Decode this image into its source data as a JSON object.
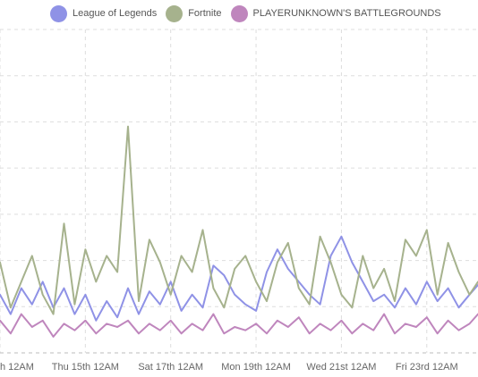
{
  "chart_data": {
    "type": "line",
    "legend_position": "top",
    "grid": true,
    "x_tick_labels": [
      "h 12AM",
      "Thu 15th 12AM",
      "Sat 17th 12AM",
      "Mon 19th 12AM",
      "Wed 21st 12AM",
      "Fri 23rd 12AM"
    ],
    "x_range_days": [
      0,
      11.2
    ],
    "ylim": [
      0,
      100
    ],
    "series": [
      {
        "name": "League of Legends",
        "color": "#8f92e6",
        "values": [
          [
            0,
            18
          ],
          [
            0.25,
            12
          ],
          [
            0.5,
            20
          ],
          [
            0.75,
            15
          ],
          [
            1,
            22
          ],
          [
            1.25,
            14
          ],
          [
            1.5,
            20
          ],
          [
            1.75,
            12
          ],
          [
            2,
            18
          ],
          [
            2.25,
            10
          ],
          [
            2.5,
            16
          ],
          [
            2.75,
            11
          ],
          [
            3,
            20
          ],
          [
            3.25,
            12
          ],
          [
            3.5,
            19
          ],
          [
            3.75,
            15
          ],
          [
            4,
            22
          ],
          [
            4.25,
            13
          ],
          [
            4.5,
            18
          ],
          [
            4.75,
            14
          ],
          [
            5,
            27
          ],
          [
            5.25,
            24
          ],
          [
            5.5,
            18
          ],
          [
            5.75,
            15
          ],
          [
            6,
            13
          ],
          [
            6.25,
            25
          ],
          [
            6.5,
            32
          ],
          [
            6.75,
            26
          ],
          [
            7,
            22
          ],
          [
            7.25,
            18
          ],
          [
            7.5,
            15
          ],
          [
            7.75,
            30
          ],
          [
            8,
            36
          ],
          [
            8.25,
            28
          ],
          [
            8.5,
            22
          ],
          [
            8.75,
            16
          ],
          [
            9,
            18
          ],
          [
            9.25,
            14
          ],
          [
            9.5,
            20
          ],
          [
            9.75,
            15
          ],
          [
            10,
            22
          ],
          [
            10.25,
            16
          ],
          [
            10.5,
            20
          ],
          [
            10.75,
            14
          ],
          [
            11,
            18
          ],
          [
            11.2,
            21
          ]
        ]
      },
      {
        "name": "Fortnite",
        "color": "#a6b28d",
        "values": [
          [
            0,
            28
          ],
          [
            0.25,
            14
          ],
          [
            0.5,
            22
          ],
          [
            0.75,
            30
          ],
          [
            1,
            18
          ],
          [
            1.25,
            12
          ],
          [
            1.5,
            40
          ],
          [
            1.75,
            15
          ],
          [
            2,
            32
          ],
          [
            2.25,
            22
          ],
          [
            2.5,
            30
          ],
          [
            2.75,
            25
          ],
          [
            3,
            70
          ],
          [
            3.25,
            16
          ],
          [
            3.5,
            35
          ],
          [
            3.75,
            28
          ],
          [
            4,
            18
          ],
          [
            4.25,
            30
          ],
          [
            4.5,
            25
          ],
          [
            4.75,
            38
          ],
          [
            5,
            20
          ],
          [
            5.25,
            14
          ],
          [
            5.5,
            26
          ],
          [
            5.75,
            30
          ],
          [
            6,
            22
          ],
          [
            6.25,
            16
          ],
          [
            6.5,
            28
          ],
          [
            6.75,
            34
          ],
          [
            7,
            20
          ],
          [
            7.25,
            15
          ],
          [
            7.5,
            36
          ],
          [
            7.75,
            28
          ],
          [
            8,
            18
          ],
          [
            8.25,
            14
          ],
          [
            8.5,
            30
          ],
          [
            8.75,
            20
          ],
          [
            9,
            26
          ],
          [
            9.25,
            16
          ],
          [
            9.5,
            35
          ],
          [
            9.75,
            30
          ],
          [
            10,
            38
          ],
          [
            10.25,
            18
          ],
          [
            10.5,
            34
          ],
          [
            10.75,
            25
          ],
          [
            11,
            18
          ],
          [
            11.2,
            22
          ]
        ]
      },
      {
        "name": "PLAYERUNKNOWN'S BATTLEGROUNDS",
        "color": "#bf86bd",
        "values": [
          [
            0,
            10
          ],
          [
            0.25,
            6
          ],
          [
            0.5,
            12
          ],
          [
            0.75,
            8
          ],
          [
            1,
            10
          ],
          [
            1.25,
            5
          ],
          [
            1.5,
            9
          ],
          [
            1.75,
            7
          ],
          [
            2,
            10
          ],
          [
            2.25,
            6
          ],
          [
            2.5,
            9
          ],
          [
            2.75,
            8
          ],
          [
            3,
            10
          ],
          [
            3.25,
            6
          ],
          [
            3.5,
            9
          ],
          [
            3.75,
            7
          ],
          [
            4,
            10
          ],
          [
            4.25,
            6
          ],
          [
            4.5,
            9
          ],
          [
            4.75,
            7
          ],
          [
            5,
            12
          ],
          [
            5.25,
            6
          ],
          [
            5.5,
            8
          ],
          [
            5.75,
            7
          ],
          [
            6,
            9
          ],
          [
            6.25,
            6
          ],
          [
            6.5,
            10
          ],
          [
            6.75,
            8
          ],
          [
            7,
            11
          ],
          [
            7.25,
            6
          ],
          [
            7.5,
            9
          ],
          [
            7.75,
            7
          ],
          [
            8,
            10
          ],
          [
            8.25,
            6
          ],
          [
            8.5,
            9
          ],
          [
            8.75,
            7
          ],
          [
            9,
            12
          ],
          [
            9.25,
            6
          ],
          [
            9.5,
            9
          ],
          [
            9.75,
            8
          ],
          [
            10,
            11
          ],
          [
            10.25,
            6
          ],
          [
            10.5,
            10
          ],
          [
            10.75,
            7
          ],
          [
            11,
            9
          ],
          [
            11.2,
            12
          ]
        ]
      }
    ]
  }
}
